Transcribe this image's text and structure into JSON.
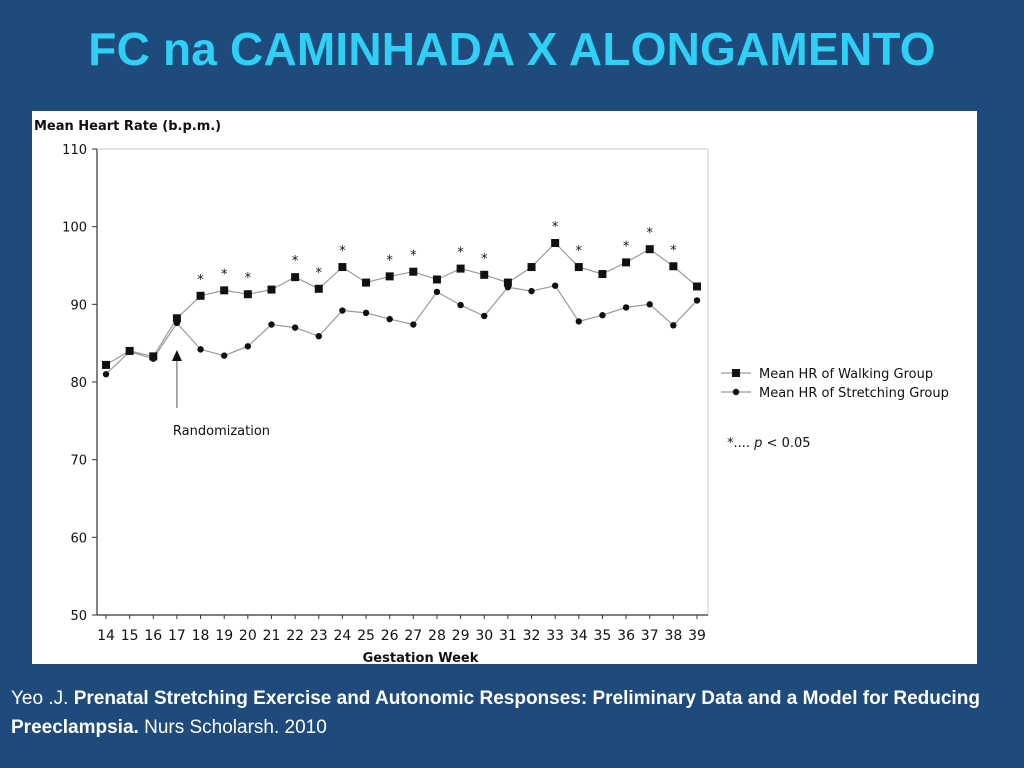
{
  "slide": {
    "title": "FC na CAMINHADA X ALONGAMENTO"
  },
  "citation": {
    "author": "Yeo .J.",
    "article_title": "Prenatal Stretching Exercise and Autonomic Responses: Preliminary Data and a Model for Reducing Preeclampsia.",
    "journal_year": "Nurs Scholarsh.  2010"
  },
  "colors": {
    "background": "#1f4a7c",
    "title": "#2fd0f5",
    "plot_line": "#9a9a9a",
    "marker": "#111111"
  },
  "chart_data": {
    "type": "line",
    "title": "",
    "ylabel": "Mean Heart Rate (b.p.m.)",
    "xlabel": "Gestation Week",
    "ylim": [
      50,
      110
    ],
    "yticks": [
      50,
      60,
      70,
      80,
      90,
      100,
      110
    ],
    "categories": [
      "14",
      "15",
      "16",
      "17",
      "18",
      "19",
      "20",
      "21",
      "22",
      "23",
      "24",
      "25",
      "26",
      "27",
      "28",
      "29",
      "30",
      "31",
      "32",
      "33",
      "34",
      "35",
      "36",
      "37",
      "38",
      "39"
    ],
    "series": [
      {
        "name": "Mean HR of Walking Group",
        "marker": "square",
        "values": [
          82.2,
          84.0,
          83.3,
          88.2,
          91.1,
          91.8,
          91.3,
          91.9,
          93.5,
          92.0,
          94.8,
          92.8,
          93.6,
          94.2,
          93.2,
          94.6,
          93.8,
          92.8,
          94.8,
          97.9,
          94.8,
          93.9,
          95.4,
          97.1,
          94.9,
          92.3
        ]
      },
      {
        "name": "Mean HR of Stretching Group",
        "marker": "circle",
        "values": [
          81.0,
          83.9,
          83.0,
          87.6,
          84.2,
          83.4,
          84.6,
          87.4,
          87.0,
          85.9,
          89.2,
          88.9,
          88.1,
          87.4,
          91.6,
          89.9,
          88.5,
          92.2,
          91.7,
          92.4,
          87.8,
          88.6,
          89.6,
          90.0,
          87.3,
          90.5
        ]
      }
    ],
    "significance": {
      "marker_text": "*",
      "weeks": [
        "18",
        "19",
        "20",
        "22",
        "23",
        "24",
        "26",
        "27",
        "29",
        "30",
        "33",
        "34",
        "36",
        "37",
        "38"
      ],
      "legend_prefix": "*....",
      "legend_p": "p",
      "legend_threshold": "< 0.05"
    },
    "annotation": {
      "text": "Randomization",
      "week": "17"
    }
  }
}
